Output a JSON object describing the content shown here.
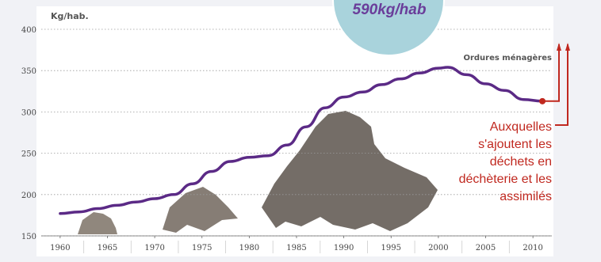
{
  "chart_data": {
    "type": "line",
    "ylabel": "Kg/hab.",
    "ylim": [
      150,
      400
    ],
    "yticks": [
      "150",
      "200",
      "250",
      "300",
      "350",
      "400"
    ],
    "xlim": [
      1958,
      2012
    ],
    "xticks": [
      "1960",
      "1965",
      "1970",
      "1975",
      "1980",
      "1985",
      "1990",
      "1995",
      "2000",
      "2005",
      "2010"
    ],
    "grid": "horizontal dotted",
    "series": [
      {
        "name": "Ordures ménagères",
        "color": "#5b2a86",
        "x": [
          1960,
          1962,
          1964,
          1966,
          1968,
          1970,
          1972,
          1974,
          1976,
          1978,
          1980,
          1982,
          1984,
          1986,
          1988,
          1990,
          1992,
          1994,
          1996,
          1998,
          2000,
          2001,
          2003,
          2005,
          2007,
          2009,
          2011
        ],
        "y": [
          177,
          179,
          183,
          187,
          191,
          195,
          200,
          213,
          228,
          240,
          245,
          247,
          260,
          282,
          305,
          318,
          324,
          333,
          340,
          347,
          353,
          354,
          345,
          334,
          326,
          315,
          313
        ]
      }
    ],
    "highlight_point": {
      "x": 2011,
      "y": 313,
      "color": "#c0281f"
    }
  },
  "annotations": {
    "added": "Auxquelles s'ajoutent les déchets en déchèterie et les assimilés",
    "total": "590kg/hab"
  }
}
